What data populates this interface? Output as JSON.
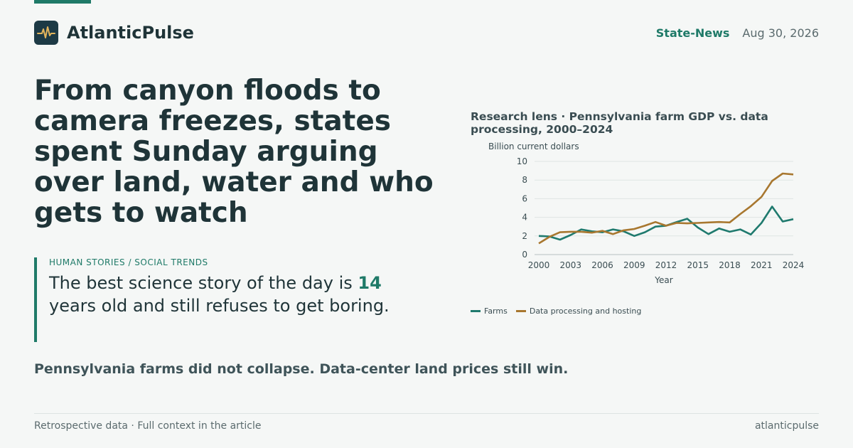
{
  "brand": {
    "name": "AtlanticPulse",
    "icon": "pulse-icon",
    "color": "#1d3a45",
    "icon_color": "#e2b45c"
  },
  "header": {
    "section": "State-News",
    "date": "Aug 30, 2026"
  },
  "headline": "From canyon floods to camera freezes, states spent Sunday arguing over land, water and who gets to watch",
  "kicker": "HUMAN STORIES / SOCIAL TRENDS",
  "quote": {
    "before": "The best science story of the day is ",
    "highlight": "14",
    "after": " years old and still refuses to get boring."
  },
  "subhead": "Pennsylvania farms did not collapse. Data-center land prices still win.",
  "footer": {
    "left": "Retrospective data · Full context in the article",
    "right": "atlanticpulse"
  },
  "colors": {
    "accent": "#1f7a68",
    "farms": "#1f7a6e",
    "data": "#a8772f"
  },
  "chart_data": {
    "type": "line",
    "title": "Research lens · Pennsylvania farm GDP vs. data processing, 2000–2024",
    "ylabel": "Billion current dollars",
    "xlabel": "Year",
    "ylim": [
      0,
      10
    ],
    "yticks": [
      0,
      2,
      4,
      6,
      8,
      10
    ],
    "xticks": [
      2000,
      2003,
      2006,
      2009,
      2012,
      2015,
      2018,
      2021,
      2024
    ],
    "grid": true,
    "legend_position": "bottom-left",
    "x": [
      2000,
      2001,
      2002,
      2003,
      2004,
      2005,
      2006,
      2007,
      2008,
      2009,
      2010,
      2011,
      2012,
      2013,
      2014,
      2015,
      2016,
      2017,
      2018,
      2019,
      2020,
      2021,
      2022,
      2023,
      2024
    ],
    "series": [
      {
        "name": "Farms",
        "color": "#1f7a6e",
        "values": [
          2.0,
          1.95,
          1.6,
          2.1,
          2.7,
          2.5,
          2.4,
          2.7,
          2.5,
          2.0,
          2.4,
          3.0,
          3.1,
          3.5,
          3.85,
          2.9,
          2.2,
          2.8,
          2.45,
          2.7,
          2.15,
          3.4,
          5.15,
          3.55,
          3.8
        ]
      },
      {
        "name": "Data processing and hosting",
        "color": "#a8772f",
        "values": [
          1.2,
          1.9,
          2.4,
          2.45,
          2.45,
          2.35,
          2.55,
          2.2,
          2.6,
          2.75,
          3.1,
          3.5,
          3.1,
          3.4,
          3.35,
          3.4,
          3.45,
          3.5,
          3.45,
          4.35,
          5.2,
          6.2,
          7.9,
          8.7,
          8.6
        ]
      }
    ]
  }
}
